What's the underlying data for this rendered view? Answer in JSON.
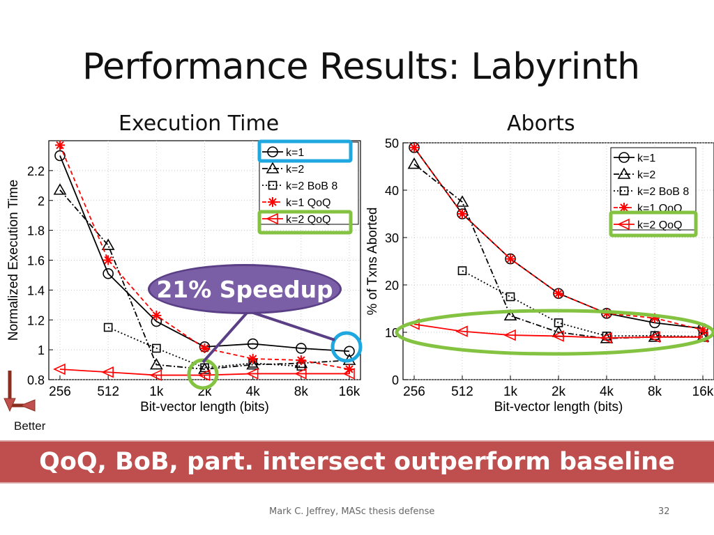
{
  "slide": {
    "title": "Performance Results: Labyrinth",
    "banner": "QoQ, BoB, part. intersect outperform baseline",
    "footer_author": "Mark C. Jeffrey, MASc thesis defense",
    "page_number": "32",
    "callout": "21% Speedup",
    "better_label": "Better"
  },
  "colors": {
    "banner": "#bf4e4e",
    "callout": "#7a5ea6",
    "highlight_blue": "#1fa8e0",
    "highlight_green": "#84c341",
    "qoq_red": "#ff0000"
  },
  "chart_data": [
    {
      "type": "line",
      "title": "Execution Time",
      "xlabel": "Bit-vector length (bits)",
      "ylabel": "Normalized Execution Time",
      "categories": [
        "256",
        "512",
        "1k",
        "2k",
        "4k",
        "8k",
        "16k"
      ],
      "ylim": [
        0.8,
        2.4
      ],
      "yticks": [
        0.8,
        1,
        1.2,
        1.4,
        1.6,
        1.8,
        2,
        2.2
      ],
      "grid": true,
      "legend_position": "top-right",
      "series": [
        {
          "name": "k=1",
          "marker": "circle",
          "color": "#000000",
          "dash": "",
          "values": [
            2.3,
            1.51,
            1.19,
            1.02,
            1.04,
            1.01,
            0.99
          ]
        },
        {
          "name": "k=2",
          "marker": "triangle",
          "color": "#000000",
          "dash": "8,3,2,3",
          "values": [
            2.07,
            1.7,
            0.9,
            0.87,
            0.9,
            0.91,
            0.93
          ]
        },
        {
          "name": "k=2 BoB 8",
          "marker": "square",
          "color": "#000000",
          "dash": "2,3",
          "values": [
            null,
            1.15,
            1.01,
            0.88,
            0.91,
            0.89,
            null
          ]
        },
        {
          "name": "k=1 QoQ",
          "marker": "asterisk",
          "color": "#ff0000",
          "dash": "6,4",
          "values": [
            2.37,
            1.6,
            1.23,
            1.01,
            0.94,
            0.93,
            0.87
          ]
        },
        {
          "name": "k=2 QoQ",
          "marker": "triangle-left",
          "color": "#ff0000",
          "dash": "",
          "values": [
            0.87,
            0.85,
            0.83,
            0.83,
            0.84,
            0.84,
            0.84
          ]
        }
      ]
    },
    {
      "type": "line",
      "title": "Aborts",
      "xlabel": "Bit-vector length (bits)",
      "ylabel": "% of Txns Aborted",
      "categories": [
        "256",
        "512",
        "1k",
        "2k",
        "4k",
        "8k",
        "16k"
      ],
      "ylim": [
        0,
        50
      ],
      "yticks": [
        0,
        10,
        20,
        30,
        40,
        50
      ],
      "grid": true,
      "legend_position": "top-right",
      "series": [
        {
          "name": "k=1",
          "marker": "circle",
          "color": "#000000",
          "dash": "",
          "values": [
            49,
            35,
            25.5,
            18.2,
            14,
            12,
            10.8
          ]
        },
        {
          "name": "k=2",
          "marker": "triangle",
          "color": "#000000",
          "dash": "8,3,2,3",
          "values": [
            45.5,
            37.5,
            13.5,
            10,
            8.7,
            9,
            9
          ]
        },
        {
          "name": "k=2 BoB 8",
          "marker": "square",
          "color": "#000000",
          "dash": "2,3",
          "values": [
            null,
            23,
            17.5,
            12,
            9.2,
            9.3,
            9.1
          ]
        },
        {
          "name": "k=1 QoQ",
          "marker": "asterisk",
          "color": "#ff0000",
          "dash": "6,4",
          "values": [
            49,
            35,
            25.5,
            18.2,
            14,
            13,
            10.5
          ]
        },
        {
          "name": "k=2 QoQ",
          "marker": "triangle-left",
          "color": "#ff0000",
          "dash": "",
          "values": [
            11.7,
            10.2,
            9.4,
            9.2,
            8.8,
            9,
            9
          ]
        }
      ]
    }
  ]
}
